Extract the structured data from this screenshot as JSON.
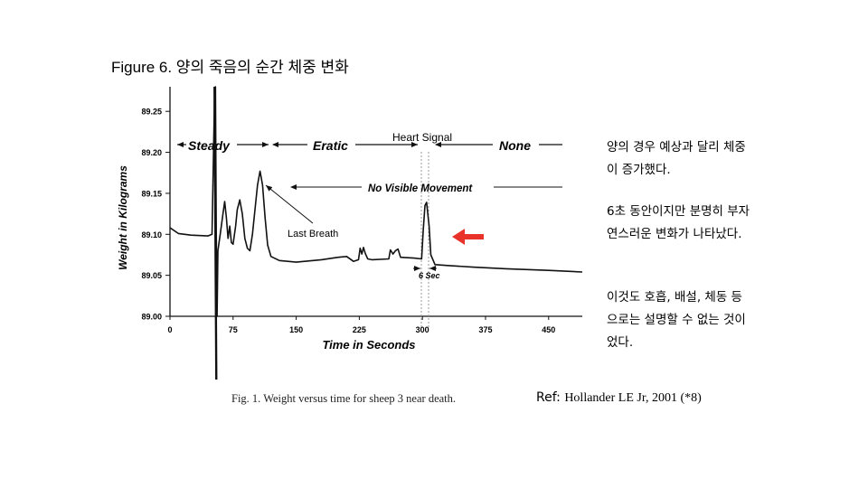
{
  "slide": {
    "title": "Figure 6. 양의 죽음의 순간 체중 변화",
    "notes": [
      "양의 경우 예상과 달리 체중이 증가했다.",
      "6초 동안이지만 분명히 부자연스러운 변화가 나타났다.",
      "이것도 호흡, 배설, 체동 등으로는 설명할 수 없는 것이었다."
    ],
    "ref_label": "Ref:",
    "ref_cite": "Hollander LE Jr, 2001 (*8)"
  },
  "figure": {
    "caption": "Fig. 1.    Weight versus time for sheep 3 near death.",
    "arrow_color": "#e8322a",
    "line_color": "#111111"
  },
  "chart_data": {
    "type": "line",
    "xlabel": "Time in Seconds",
    "ylabel": "Weight in Kilograms",
    "xlim": [
      0,
      490
    ],
    "ylim": [
      89.0,
      89.28
    ],
    "x_ticks": [
      0,
      75,
      150,
      225,
      300,
      375,
      450
    ],
    "y_ticks": [
      89.0,
      89.05,
      89.1,
      89.15,
      89.2,
      89.25
    ],
    "y_tick_labels": [
      "89.00",
      "89.05",
      "89.10",
      "89.15",
      "89.20",
      "89.25"
    ],
    "grid": false,
    "series": [
      {
        "points": [
          [
            0,
            89.108
          ],
          [
            10,
            89.101
          ],
          [
            25,
            89.099
          ],
          [
            45,
            89.098
          ],
          [
            50,
            89.1
          ],
          [
            53,
            89.27
          ],
          [
            54,
            89.28
          ],
          [
            55,
            89.1
          ],
          [
            56,
            89.0
          ],
          [
            57,
            89.08
          ],
          [
            60,
            89.102
          ],
          [
            63,
            89.125
          ],
          [
            65,
            89.14
          ],
          [
            67,
            89.12
          ],
          [
            69,
            89.095
          ],
          [
            71,
            89.11
          ],
          [
            73,
            89.09
          ],
          [
            75,
            89.088
          ],
          [
            78,
            89.11
          ],
          [
            80,
            89.13
          ],
          [
            83,
            89.142
          ],
          [
            86,
            89.125
          ],
          [
            89,
            89.095
          ],
          [
            92,
            89.083
          ],
          [
            95,
            89.08
          ],
          [
            98,
            89.1
          ],
          [
            101,
            89.13
          ],
          [
            104,
            89.16
          ],
          [
            107,
            89.177
          ],
          [
            110,
            89.16
          ],
          [
            113,
            89.12
          ],
          [
            116,
            89.087
          ],
          [
            120,
            89.073
          ],
          [
            130,
            89.068
          ],
          [
            150,
            89.066
          ],
          [
            180,
            89.069
          ],
          [
            200,
            89.072
          ],
          [
            210,
            89.073
          ],
          [
            218,
            89.067
          ],
          [
            224,
            89.069
          ],
          [
            226,
            89.083
          ],
          [
            228,
            89.076
          ],
          [
            230,
            89.084
          ],
          [
            232,
            89.077
          ],
          [
            235,
            89.07
          ],
          [
            240,
            89.069
          ],
          [
            260,
            89.07
          ],
          [
            262,
            89.081
          ],
          [
            265,
            89.076
          ],
          [
            268,
            89.08
          ],
          [
            271,
            89.082
          ],
          [
            274,
            89.072
          ],
          [
            290,
            89.071
          ],
          [
            299,
            89.07
          ],
          [
            301,
            89.105
          ],
          [
            303,
            89.135
          ],
          [
            305,
            89.139
          ],
          [
            308,
            89.11
          ],
          [
            310,
            89.075
          ],
          [
            315,
            89.063
          ],
          [
            330,
            89.062
          ],
          [
            360,
            89.06
          ],
          [
            400,
            89.058
          ],
          [
            450,
            89.056
          ],
          [
            490,
            89.054
          ]
        ]
      }
    ],
    "annotations": {
      "steady": "Steady",
      "erratic": "Eratic",
      "heart_signal": "Heart Signal",
      "none": "None",
      "no_visible_movement": "No Visible Movement",
      "last_breath": "Last Breath",
      "six_sec": "6 Sec"
    }
  }
}
